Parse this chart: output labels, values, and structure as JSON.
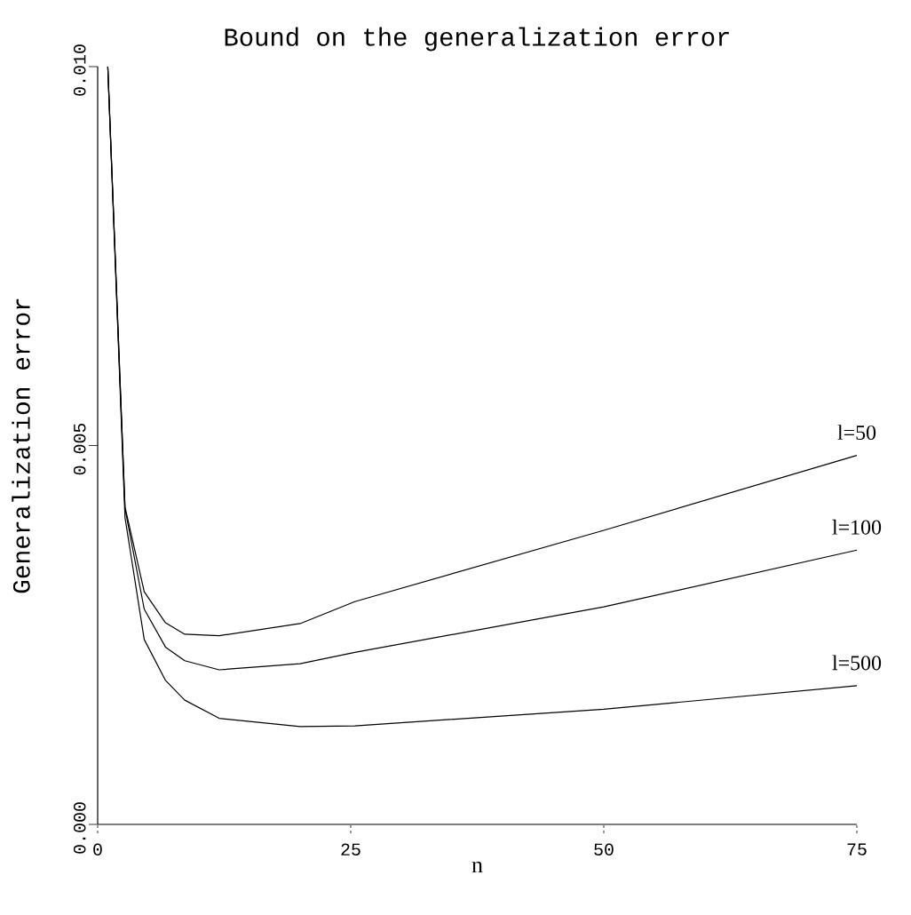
{
  "chart_data": {
    "type": "line",
    "title": "Bound on the generalization error",
    "xlabel": "n",
    "ylabel": "Generalization error",
    "x": [
      1,
      2.7,
      4.6,
      6.7,
      8.6,
      12,
      20,
      25.4,
      50,
      75
    ],
    "series": [
      {
        "name": "l=50",
        "color": "#000000",
        "values": [
          0.01,
          0.00419,
          0.00307,
          0.00266,
          0.00251,
          0.00249,
          0.00265,
          0.00294,
          0.00388,
          0.00487
        ]
      },
      {
        "name": "l=100",
        "color": "#000000",
        "values": [
          0.01,
          0.00417,
          0.00284,
          0.00234,
          0.00216,
          0.00204,
          0.00212,
          0.00227,
          0.00287,
          0.00362
        ]
      },
      {
        "name": "l=500",
        "color": "#000000",
        "values": [
          0.01,
          0.00405,
          0.00244,
          0.0019,
          0.00164,
          0.0014,
          0.00129,
          0.0013,
          0.00152,
          0.00183
        ]
      }
    ],
    "xlim": [
      0,
      75
    ],
    "ylim": [
      0,
      0.01
    ],
    "xticks": [
      0,
      25,
      50,
      75
    ],
    "yticks": [
      {
        "value": 0,
        "label": "0.000"
      },
      {
        "value": 0.005,
        "label": "0.005"
      },
      {
        "value": 0.01,
        "label": "0.010"
      }
    ],
    "grid": false,
    "legend": false,
    "marker": "none",
    "line_style": "solid"
  }
}
